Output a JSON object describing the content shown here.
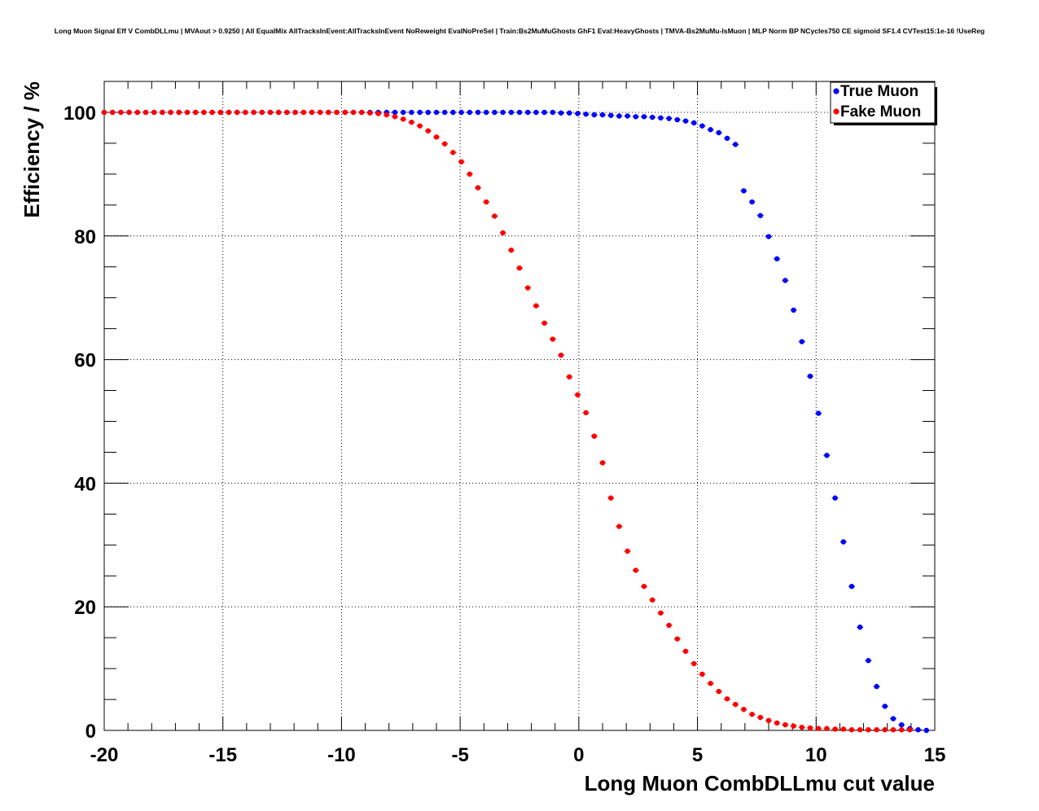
{
  "chart_data": {
    "type": "scatter",
    "title": "Long Muon Signal Eff V CombDLLmu | MVAout > 0.9250 | All EqualMix AllTracksInEvent:AllTracksInEvent NoReweight EvalNoPreSel | Train:Bs2MuMuGhosts GhF1 Eval:HeavyGhosts | TMVA-Bs2MuMu-IsMuon | MLP Norm BP NCycles750 CE sigmoid SF1.4 CVTest15:1e-16 !UseReg",
    "xlabel": "Long Muon CombDLLmu cut value",
    "ylabel": "Efficiency / %",
    "xlim": [
      -20,
      15
    ],
    "ylim": [
      0,
      105
    ],
    "xticks": [
      -20,
      -15,
      -10,
      -5,
      0,
      5,
      10,
      15
    ],
    "yticks": [
      0,
      20,
      40,
      60,
      80,
      100
    ],
    "grid": true,
    "legend_position": "top-right",
    "series": [
      {
        "name": "True Muon",
        "color": "#0000ff",
        "x": [
          -20,
          -19.65,
          -19.3,
          -18.95,
          -18.6,
          -18.25,
          -17.9,
          -17.55,
          -17.2,
          -16.85,
          -16.5,
          -16.15,
          -15.8,
          -15.45,
          -15.1,
          -14.75,
          -14.4,
          -14.05,
          -13.7,
          -13.35,
          -13,
          -12.65,
          -12.3,
          -11.95,
          -11.6,
          -11.25,
          -10.9,
          -10.55,
          -10.2,
          -9.85,
          -9.5,
          -9.15,
          -8.8,
          -8.45,
          -8.1,
          -7.75,
          -7.4,
          -7.05,
          -6.7,
          -6.35,
          -6,
          -5.65,
          -5.3,
          -4.95,
          -4.6,
          -4.25,
          -3.9,
          -3.55,
          -3.2,
          -2.85,
          -2.5,
          -2.15,
          -1.8,
          -1.45,
          -1.1,
          -0.75,
          -0.4,
          -0.05,
          0.3,
          0.65,
          1,
          1.35,
          1.7,
          2.05,
          2.4,
          2.75,
          3.1,
          3.45,
          3.8,
          4.15,
          4.5,
          4.85,
          5.2,
          5.55,
          5.9,
          6.25,
          6.6,
          6.95,
          7.3,
          7.65,
          8,
          8.35,
          8.7,
          9.05,
          9.4,
          9.75,
          10.1,
          10.45,
          10.8,
          11.15,
          11.5,
          11.85,
          12.2,
          12.55,
          12.9,
          13.25,
          13.6,
          13.95,
          14.3,
          14.65
        ],
        "y": [
          100,
          100,
          100,
          100,
          100,
          100,
          100,
          100,
          100,
          100,
          100,
          100,
          100,
          100,
          100,
          100,
          100,
          100,
          100,
          100,
          100,
          100,
          100,
          100,
          100,
          100,
          100,
          100,
          100,
          100,
          100,
          100,
          100,
          100,
          100,
          100,
          100,
          100,
          100,
          100,
          100,
          100,
          100,
          100,
          100,
          100,
          100,
          100,
          100,
          100,
          100,
          100,
          100,
          100,
          100,
          99.9,
          99.9,
          99.8,
          99.7,
          99.6,
          99.6,
          99.5,
          99.4,
          99.4,
          99.3,
          99.3,
          99.2,
          99.1,
          99,
          98.8,
          98.6,
          98.3,
          97.8,
          97.2,
          96.7,
          95.8,
          94.8,
          87.3,
          85.5,
          83.3,
          79.9,
          76.3,
          72.8,
          68,
          62.9,
          57.3,
          51.3,
          44.5,
          37.6,
          30.5,
          23.3,
          16.7,
          11.3,
          7.1,
          3.9,
          1.9,
          0.9,
          0.3,
          0.1,
          0
        ],
        "y_err": [
          0,
          0,
          0,
          0,
          0,
          0,
          0,
          0,
          0,
          0,
          0,
          0,
          0,
          0,
          0,
          0,
          0,
          0,
          0,
          0,
          0,
          0,
          0,
          0,
          0,
          0,
          0,
          0,
          0,
          0,
          0,
          0,
          0,
          0,
          0,
          0,
          0,
          0,
          0,
          0,
          0,
          0,
          0,
          0,
          0,
          0,
          0,
          0,
          0,
          0,
          0,
          0,
          0,
          0,
          0,
          0.1,
          0.1,
          0.1,
          0.1,
          0.1,
          0.1,
          0.1,
          0.1,
          0.1,
          0.1,
          0.1,
          0.1,
          0.1,
          0.1,
          0.1,
          0.1,
          0.1,
          0.1,
          0.2,
          0.2,
          0.2,
          0.2,
          0.3,
          0.3,
          0.3,
          0.3,
          0.3,
          0.3,
          0.3,
          0.3,
          0.3,
          0.3,
          0.3,
          0.3,
          0.3,
          0.3,
          0.3,
          0.2,
          0.2,
          0.2,
          0.1,
          0.1,
          0.1,
          0.1,
          0.1
        ]
      },
      {
        "name": "Fake Muon",
        "color": "#ff0000",
        "x": [
          -20,
          -19.65,
          -19.3,
          -18.95,
          -18.6,
          -18.25,
          -17.9,
          -17.55,
          -17.2,
          -16.85,
          -16.5,
          -16.15,
          -15.8,
          -15.45,
          -15.1,
          -14.75,
          -14.4,
          -14.05,
          -13.7,
          -13.35,
          -13,
          -12.65,
          -12.3,
          -11.95,
          -11.6,
          -11.25,
          -10.9,
          -10.55,
          -10.2,
          -9.85,
          -9.5,
          -9.15,
          -8.8,
          -8.45,
          -8.1,
          -7.75,
          -7.4,
          -7.05,
          -6.7,
          -6.35,
          -6,
          -5.65,
          -5.3,
          -4.95,
          -4.6,
          -4.25,
          -3.9,
          -3.55,
          -3.2,
          -2.85,
          -2.5,
          -2.15,
          -1.8,
          -1.45,
          -1.1,
          -0.75,
          -0.4,
          -0.05,
          0.3,
          0.65,
          1,
          1.35,
          1.7,
          2.05,
          2.4,
          2.75,
          3.1,
          3.45,
          3.8,
          4.15,
          4.5,
          4.85,
          5.2,
          5.55,
          5.9,
          6.25,
          6.6,
          6.95,
          7.3,
          7.65,
          8,
          8.35,
          8.7,
          9.05,
          9.4,
          9.75,
          10.1,
          10.45,
          10.8,
          11.15,
          11.5,
          11.85,
          12.2,
          12.55,
          12.9,
          13.25,
          13.6,
          13.95
        ],
        "y": [
          100,
          100,
          100,
          100,
          100,
          100,
          100,
          100,
          100,
          100,
          100,
          100,
          100,
          100,
          100,
          100,
          100,
          100,
          100,
          100,
          100,
          100,
          100,
          100,
          100,
          100,
          100,
          100,
          100,
          100,
          100,
          100,
          99.9,
          99.8,
          99.6,
          99.3,
          98.9,
          98.4,
          97.8,
          97,
          96,
          94.9,
          93.5,
          92,
          90,
          87.8,
          85.5,
          83.2,
          80.5,
          77.7,
          74.8,
          71.6,
          68.7,
          65.9,
          63.3,
          60.7,
          57.2,
          54.3,
          51.4,
          47.6,
          43.3,
          37.6,
          33,
          29,
          25.9,
          23.3,
          21.1,
          19,
          17,
          14.8,
          12.8,
          10.8,
          9.1,
          7.6,
          6.3,
          5.1,
          4.2,
          3.4,
          2.6,
          2.1,
          1.6,
          1.2,
          0.9,
          0.7,
          0.5,
          0.4,
          0.3,
          0.3,
          0.2,
          0.2,
          0.1,
          0.1,
          0.1,
          0.1,
          0.1,
          0.1,
          0.1,
          0.1
        ],
        "y_err": [
          0,
          0,
          0,
          0,
          0,
          0,
          0,
          0,
          0,
          0,
          0,
          0,
          0,
          0,
          0,
          0,
          0,
          0,
          0,
          0,
          0,
          0,
          0,
          0,
          0,
          0,
          0,
          0,
          0,
          0,
          0,
          0,
          0.1,
          0.1,
          0.1,
          0.1,
          0.1,
          0.1,
          0.1,
          0.1,
          0.2,
          0.2,
          0.2,
          0.2,
          0.2,
          0.3,
          0.3,
          0.3,
          0.3,
          0.3,
          0.3,
          0.3,
          0.3,
          0.3,
          0.3,
          0.3,
          0.3,
          0.3,
          0.3,
          0.3,
          0.3,
          0.3,
          0.3,
          0.3,
          0.3,
          0.3,
          0.3,
          0.3,
          0.3,
          0.3,
          0.2,
          0.2,
          0.2,
          0.2,
          0.2,
          0.2,
          0.1,
          0.1,
          0.1,
          0.1,
          0.1,
          0.1,
          0.1,
          0.1,
          0.1,
          0.1,
          0.1,
          0.1,
          0.1,
          0.1,
          0.1,
          0.1,
          0.1,
          0.1,
          0.1,
          0.1,
          0.1,
          0.1
        ]
      }
    ]
  }
}
